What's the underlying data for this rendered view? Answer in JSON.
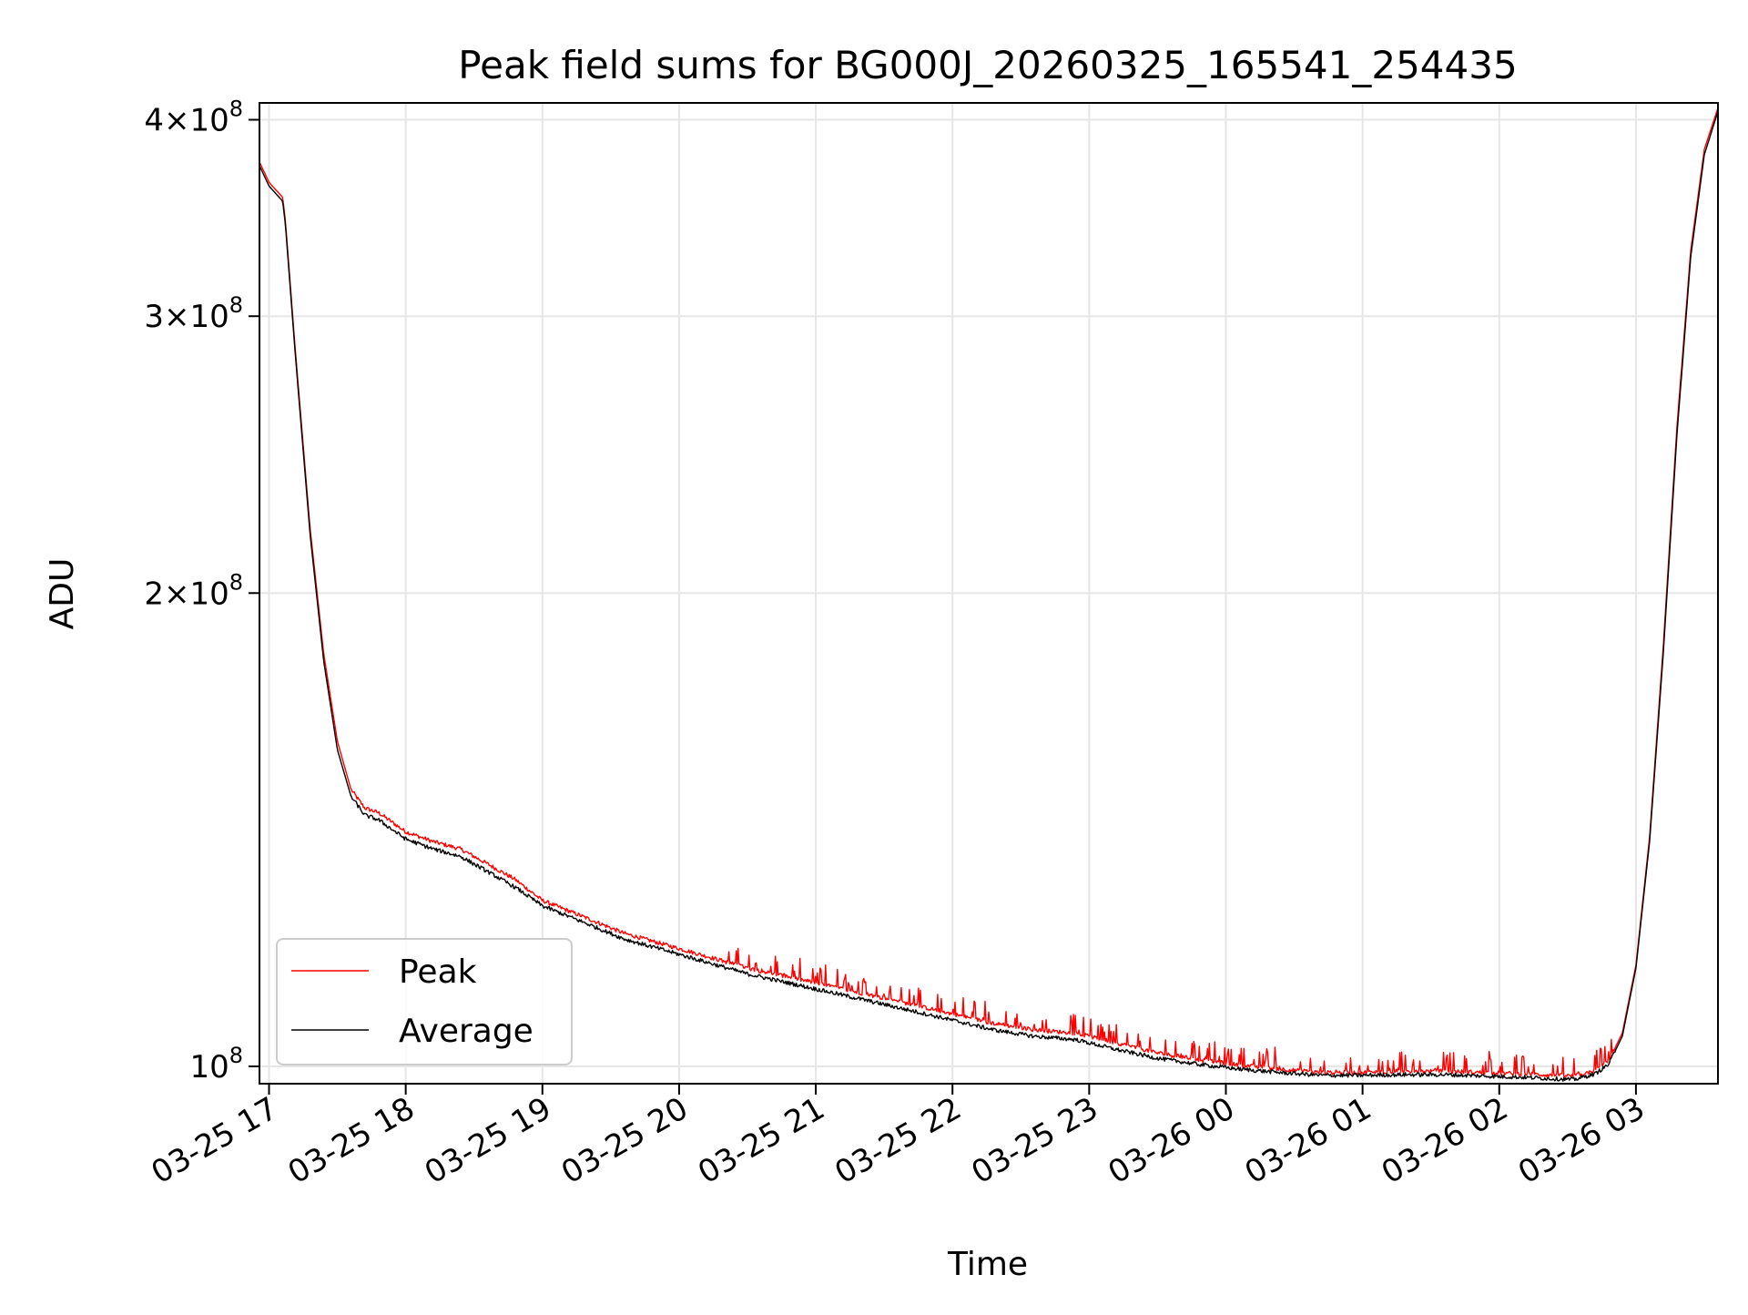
{
  "chart_data": {
    "type": "line",
    "title": "Peak field sums for BG000J_20260325_165541_254435",
    "xlabel": "Time",
    "ylabel": "ADU",
    "yscale": "log",
    "ylim": [
      97500000,
      410000000
    ],
    "xlim_hours": [
      16.93,
      27.6
    ],
    "grid": true,
    "legend_location": "lower left",
    "x_ticks": [
      {
        "label": "03-25 17",
        "hour": 17
      },
      {
        "label": "03-25 18",
        "hour": 18
      },
      {
        "label": "03-25 19",
        "hour": 19
      },
      {
        "label": "03-25 20",
        "hour": 20
      },
      {
        "label": "03-25 21",
        "hour": 21
      },
      {
        "label": "03-25 22",
        "hour": 22
      },
      {
        "label": "03-25 23",
        "hour": 23
      },
      {
        "label": "03-26 00",
        "hour": 24
      },
      {
        "label": "03-26 01",
        "hour": 25
      },
      {
        "label": "03-26 02",
        "hour": 26
      },
      {
        "label": "03-26 03",
        "hour": 27
      }
    ],
    "y_ticks": [
      {
        "mantissa": "10",
        "exponent": "8",
        "value": 100000000
      },
      {
        "mantissa": "2×10",
        "exponent": "8",
        "value": 200000000
      },
      {
        "mantissa": "3×10",
        "exponent": "8",
        "value": 300000000
      },
      {
        "mantissa": "4×10",
        "exponent": "8",
        "value": 400000000
      }
    ],
    "series": [
      {
        "name": "Peak",
        "color": "#ff0000",
        "x_hours": [
          16.93,
          17.0,
          17.1,
          17.12,
          17.2,
          17.3,
          17.4,
          17.5,
          17.6,
          17.7,
          17.8,
          17.9,
          18.0,
          18.2,
          18.4,
          18.6,
          18.8,
          19.0,
          19.3,
          19.6,
          19.9,
          20.2,
          20.5,
          20.8,
          21.1,
          21.4,
          21.7,
          22.0,
          22.3,
          22.6,
          22.9,
          23.2,
          23.5,
          23.8,
          24.1,
          24.4,
          24.7,
          25.0,
          25.3,
          25.6,
          25.9,
          26.2,
          26.4,
          26.55,
          26.7,
          26.8,
          26.9,
          27.0,
          27.1,
          27.2,
          27.3,
          27.4,
          27.5,
          27.6
        ],
        "values": [
          376000000,
          365000000,
          357000000,
          345000000,
          280000000,
          220000000,
          183000000,
          161000000,
          150000000,
          146000000,
          145000000,
          143000000,
          141000000,
          139000000,
          137500000,
          134500000,
          131500000,
          127500000,
          124500000,
          121500000,
          119500000,
          117500000,
          115500000,
          114000000,
          112500000,
          111000000,
          109500000,
          108000000,
          106500000,
          105500000,
          105000000,
          103500000,
          102000000,
          101000000,
          100200000,
          99600000,
          99100000,
          99100000,
          99300000,
          99300000,
          99100000,
          98900000,
          98700000,
          98600000,
          99400000,
          100800000,
          105000000,
          116000000,
          140000000,
          185000000,
          255000000,
          330000000,
          383000000,
          407000000
        ]
      },
      {
        "name": "Average",
        "color": "#000000",
        "x_hours": [
          16.93,
          17.0,
          17.1,
          17.12,
          17.2,
          17.3,
          17.4,
          17.5,
          17.6,
          17.7,
          17.8,
          17.9,
          18.0,
          18.2,
          18.4,
          18.6,
          18.8,
          19.0,
          19.3,
          19.6,
          19.9,
          20.2,
          20.5,
          20.8,
          21.1,
          21.4,
          21.7,
          22.0,
          22.3,
          22.6,
          22.9,
          23.2,
          23.5,
          23.8,
          24.1,
          24.4,
          24.7,
          25.0,
          25.3,
          25.6,
          25.9,
          26.2,
          26.4,
          26.55,
          26.7,
          26.8,
          26.9,
          27.0,
          27.1,
          27.2,
          27.3,
          27.4,
          27.5,
          27.6
        ],
        "values": [
          374000000,
          363000000,
          355000000,
          343000000,
          278000000,
          218000000,
          181000000,
          159000000,
          148500000,
          144500000,
          143500000,
          141500000,
          139500000,
          137500000,
          136000000,
          133000000,
          130000000,
          126500000,
          123500000,
          120500000,
          118500000,
          116500000,
          114500000,
          113000000,
          111500000,
          110000000,
          108500000,
          107000000,
          105500000,
          104500000,
          104000000,
          102500000,
          101200000,
          100300000,
          99600000,
          99100000,
          98700000,
          98700000,
          98800000,
          98800000,
          98600000,
          98400000,
          98200000,
          98100000,
          98900000,
          100300000,
          104500000,
          115500000,
          139000000,
          183000000,
          252000000,
          327000000,
          380000000,
          405000000
        ]
      }
    ]
  }
}
